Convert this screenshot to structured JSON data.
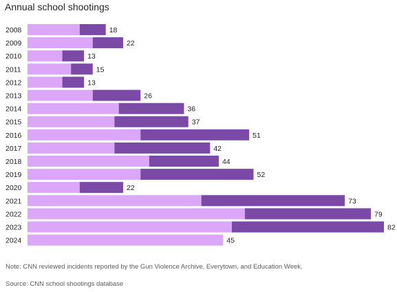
{
  "title": "Annual school shootings",
  "note": "Note: CNN reviewed incidents reported by the Gun Violence Archive, Everytown, and Education Week.",
  "source": "Source: CNN school shootings database",
  "colors": {
    "light": "#dca7f8",
    "dark": "#7b4aa6",
    "text": "#222222"
  },
  "chart_data": {
    "type": "bar",
    "orientation": "horizontal",
    "stacked": true,
    "categories": [
      "2008",
      "2009",
      "2010",
      "2011",
      "2012",
      "2013",
      "2014",
      "2015",
      "2016",
      "2017",
      "2018",
      "2019",
      "2020",
      "2021",
      "2022",
      "2023",
      "2024"
    ],
    "series": [
      {
        "values": [
          12,
          15,
          8,
          10,
          8,
          15,
          21,
          20,
          26,
          20,
          28,
          26,
          12,
          40,
          50,
          47,
          45
        ]
      },
      {
        "values": [
          6,
          7,
          5,
          5,
          5,
          11,
          15,
          17,
          25,
          22,
          16,
          26,
          10,
          33,
          29,
          35,
          0
        ]
      }
    ],
    "totals": [
      18,
      22,
      13,
      15,
      13,
      26,
      36,
      37,
      51,
      42,
      44,
      52,
      22,
      73,
      79,
      82,
      45
    ],
    "xlim": [
      0,
      82
    ],
    "grid": false,
    "legend": "none"
  }
}
